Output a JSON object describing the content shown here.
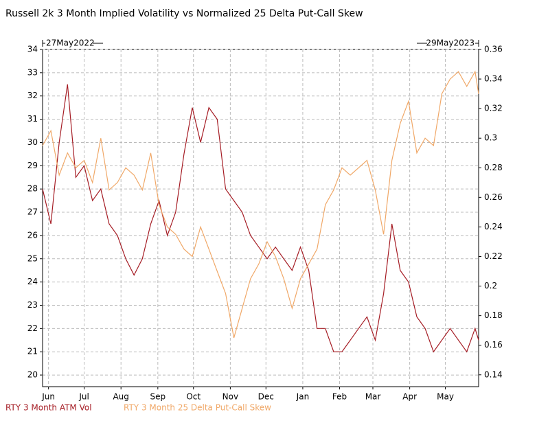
{
  "chart_data": {
    "type": "line",
    "title": "Russell 2k 3 Month Implied Volatility vs Normalized 25 Delta Put-Call Skew",
    "start_label": "27May2022",
    "end_label": "29May2023",
    "x": [
      "2022-05-27",
      "2022-06-03",
      "2022-06-10",
      "2022-06-17",
      "2022-06-24",
      "2022-07-01",
      "2022-07-08",
      "2022-07-15",
      "2022-07-22",
      "2022-07-29",
      "2022-08-05",
      "2022-08-12",
      "2022-08-19",
      "2022-08-26",
      "2022-09-02",
      "2022-09-09",
      "2022-09-16",
      "2022-09-23",
      "2022-09-30",
      "2022-10-07",
      "2022-10-14",
      "2022-10-21",
      "2022-10-28",
      "2022-11-04",
      "2022-11-11",
      "2022-11-18",
      "2022-11-25",
      "2022-12-02",
      "2022-12-09",
      "2022-12-16",
      "2022-12-23",
      "2022-12-30",
      "2023-01-06",
      "2023-01-13",
      "2023-01-20",
      "2023-01-27",
      "2023-02-03",
      "2023-02-10",
      "2023-02-17",
      "2023-02-24",
      "2023-03-03",
      "2023-03-10",
      "2023-03-17",
      "2023-03-24",
      "2023-03-31",
      "2023-04-07",
      "2023-04-14",
      "2023-04-21",
      "2023-04-28",
      "2023-05-05",
      "2023-05-12",
      "2023-05-19",
      "2023-05-26",
      "2023-05-29"
    ],
    "series": [
      {
        "name": "RTY 3 Month ATM Vol",
        "color": "#a51c24",
        "axis": "y",
        "values": [
          28,
          26.5,
          30,
          32.5,
          28.5,
          29,
          27.5,
          28,
          26.5,
          26,
          25,
          24.3,
          25,
          26.5,
          27.5,
          26,
          27,
          29.5,
          31.5,
          30,
          31.5,
          31,
          28,
          27.5,
          27,
          26,
          25.5,
          25,
          25.5,
          25,
          24.5,
          25.5,
          24.5,
          22,
          22,
          21,
          21,
          21.5,
          22,
          22.5,
          21.5,
          23.5,
          26.5,
          24.5,
          24,
          22.5,
          22,
          21,
          21.5,
          22,
          21.5,
          21,
          22,
          21.5
        ]
      },
      {
        "name": "RTY 3 Month 25 Delta Put-Call Skew",
        "color": "#f0a868",
        "axis": "y2",
        "values": [
          0.295,
          0.305,
          0.275,
          0.29,
          0.28,
          0.285,
          0.27,
          0.3,
          0.265,
          0.27,
          0.28,
          0.275,
          0.265,
          0.29,
          0.255,
          0.24,
          0.235,
          0.225,
          0.22,
          0.24,
          0.225,
          0.21,
          0.195,
          0.165,
          0.185,
          0.205,
          0.215,
          0.23,
          0.22,
          0.205,
          0.185,
          0.205,
          0.215,
          0.225,
          0.255,
          0.265,
          0.28,
          0.275,
          0.28,
          0.285,
          0.265,
          0.235,
          0.285,
          0.31,
          0.325,
          0.29,
          0.3,
          0.295,
          0.33,
          0.34,
          0.345,
          0.335,
          0.345,
          0.33
        ]
      }
    ],
    "xlim": [
      "2022-05-27",
      "2023-05-29"
    ],
    "xticks": [
      {
        "value": "2022-06-01",
        "label": "Jun"
      },
      {
        "value": "2022-07-01",
        "label": "Jul"
      },
      {
        "value": "2022-08-01",
        "label": "Aug"
      },
      {
        "value": "2022-09-01",
        "label": "Sep"
      },
      {
        "value": "2022-10-01",
        "label": "Oct"
      },
      {
        "value": "2022-11-01",
        "label": "Nov"
      },
      {
        "value": "2022-12-01",
        "label": "Dec"
      },
      {
        "value": "2023-01-01",
        "label": "Jan"
      },
      {
        "value": "2023-02-01",
        "label": "Feb"
      },
      {
        "value": "2023-03-01",
        "label": "Mar"
      },
      {
        "value": "2023-04-01",
        "label": "Apr"
      },
      {
        "value": "2023-05-01",
        "label": "May"
      }
    ],
    "ylim": [
      19.5,
      34
    ],
    "yticks": [
      20,
      21,
      22,
      23,
      24,
      25,
      26,
      27,
      28,
      29,
      30,
      31,
      32,
      33,
      34
    ],
    "y2lim": [
      0.132,
      0.36
    ],
    "y2ticks": [
      0.14,
      0.16,
      0.18,
      0.2,
      0.22,
      0.24,
      0.26,
      0.28,
      0.3,
      0.32,
      0.34,
      0.36
    ],
    "grid": true
  }
}
